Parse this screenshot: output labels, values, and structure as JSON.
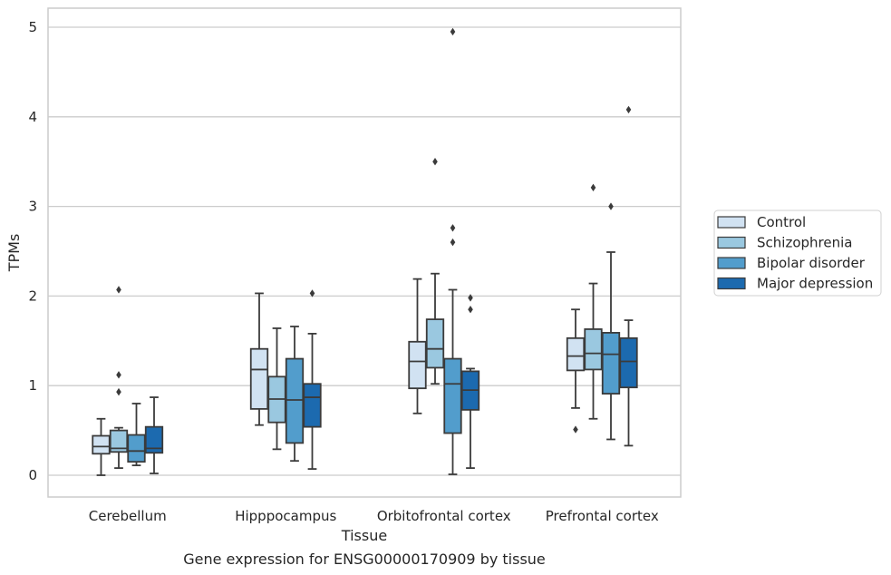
{
  "chart_data": {
    "type": "box",
    "title": "",
    "caption": "Gene expression for ENSG00000170909 by tissue",
    "xlabel": "Tissue",
    "ylabel": "TPMs",
    "ylim": [
      -0.24,
      5.2
    ],
    "yticks": [
      0,
      1,
      2,
      3,
      4,
      5
    ],
    "grid": true,
    "legend_position": "right",
    "categories": [
      "Cerebellum",
      "Hipppocampus",
      "Orbitofrontal cortex",
      "Prefrontal cortex"
    ],
    "series": [
      {
        "name": "Control",
        "color": "#d1e2f2",
        "boxes": [
          {
            "whislo": 0.0,
            "q1": 0.24,
            "med": 0.32,
            "q3": 0.44,
            "whishi": 0.63,
            "fliers": []
          },
          {
            "whislo": 0.56,
            "q1": 0.74,
            "med": 1.18,
            "q3": 1.41,
            "whishi": 2.03,
            "fliers": []
          },
          {
            "whislo": 0.69,
            "q1": 0.97,
            "med": 1.27,
            "q3": 1.49,
            "whishi": 2.19,
            "fliers": []
          },
          {
            "whislo": 0.75,
            "q1": 1.17,
            "med": 1.33,
            "q3": 1.53,
            "whishi": 1.85,
            "fliers": [
              0.51
            ]
          }
        ]
      },
      {
        "name": "Schizophrenia",
        "color": "#9ac8e0",
        "boxes": [
          {
            "whislo": 0.08,
            "q1": 0.26,
            "med": 0.3,
            "q3": 0.5,
            "whishi": 0.53,
            "fliers": [
              2.07,
              1.12,
              0.93
            ]
          },
          {
            "whislo": 0.29,
            "q1": 0.59,
            "med": 0.85,
            "q3": 1.1,
            "whishi": 1.64,
            "fliers": []
          },
          {
            "whislo": 1.02,
            "q1": 1.2,
            "med": 1.41,
            "q3": 1.74,
            "whishi": 2.25,
            "fliers": [
              3.5
            ]
          },
          {
            "whislo": 0.63,
            "q1": 1.18,
            "med": 1.36,
            "q3": 1.63,
            "whishi": 2.14,
            "fliers": [
              3.21
            ]
          }
        ]
      },
      {
        "name": "Bipolar disorder",
        "color": "#529dcc",
        "boxes": [
          {
            "whislo": 0.11,
            "q1": 0.15,
            "med": 0.27,
            "q3": 0.45,
            "whishi": 0.8,
            "fliers": []
          },
          {
            "whislo": 0.16,
            "q1": 0.36,
            "med": 0.84,
            "q3": 1.3,
            "whishi": 1.66,
            "fliers": []
          },
          {
            "whislo": 0.01,
            "q1": 0.47,
            "med": 1.02,
            "q3": 1.3,
            "whishi": 2.07,
            "fliers": [
              4.95,
              2.76,
              2.6
            ]
          },
          {
            "whislo": 0.4,
            "q1": 0.91,
            "med": 1.35,
            "q3": 1.59,
            "whishi": 2.49,
            "fliers": [
              3.0
            ]
          }
        ]
      },
      {
        "name": "Major depression",
        "color": "#1c6aaf",
        "boxes": [
          {
            "whislo": 0.02,
            "q1": 0.25,
            "med": 0.3,
            "q3": 0.54,
            "whishi": 0.87,
            "fliers": []
          },
          {
            "whislo": 0.07,
            "q1": 0.54,
            "med": 0.87,
            "q3": 1.02,
            "whishi": 1.58,
            "fliers": [
              2.03
            ]
          },
          {
            "whislo": 0.08,
            "q1": 0.73,
            "med": 0.95,
            "q3": 1.16,
            "whishi": 1.19,
            "fliers": [
              1.98,
              1.85
            ]
          },
          {
            "whislo": 0.33,
            "q1": 0.98,
            "med": 1.27,
            "q3": 1.53,
            "whishi": 1.73,
            "fliers": [
              4.08
            ]
          }
        ]
      }
    ]
  }
}
